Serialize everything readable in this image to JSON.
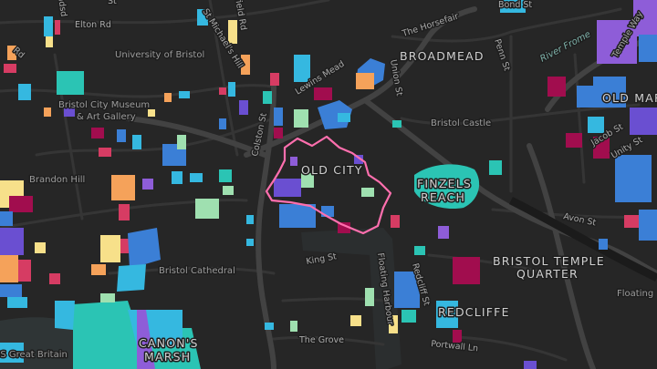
{
  "map": {
    "accent_colors": {
      "background": "#262626",
      "road": "#3a3a3a",
      "major_road": "#444444",
      "water": "#333a3b",
      "highlight_outline": "#ff6fae",
      "palette": [
        "#35b8e0",
        "#3b7fd6",
        "#6a4fd1",
        "#8e5dd8",
        "#a10d4e",
        "#d63c63",
        "#f5a25a",
        "#f7e08a",
        "#9fe0b0",
        "#2bc4b4"
      ]
    },
    "area_labels": {
      "broadmead": "BROADMEAD",
      "old_city": "OLD CITY",
      "finzels_reach_1": "FINZELS",
      "finzels_reach_2": "REACH",
      "redcliffe": "REDCLIFFE",
      "temple_quarter_1": "BRISTOL TEMPLE",
      "temple_quarter_2": "QUARTER",
      "old_market": "OLD MAR",
      "canons_marsh_1": "CANON'S",
      "canons_marsh_2": "MARSH"
    },
    "poi_labels": {
      "university": "University of Bristol",
      "museum_1": "Bristol City Museum",
      "museum_2": "& Art Gallery",
      "brandon_hill": "Brandon Hill",
      "castle": "Bristol Castle",
      "cathedral": "Bristol Cathedral",
      "ss_great_britain": "SS Great Britain",
      "floating": "Floating"
    },
    "street_labels": {
      "elton_rd": "Elton Rd",
      "the_horsefair": "The Horsefair",
      "bond_st": "Bond St",
      "lewins_mead": "Lewins Mead",
      "union_st": "Union St",
      "penn_st": "Penn St",
      "st_michaels_hill": "St Michael's Hill",
      "colston_st": "Colston St",
      "king_st": "King St",
      "avon_st": "Avon St",
      "jacob_st": "Jacob St",
      "unity_st": "Unity St",
      "the_grove": "The Grove",
      "portwall_ln": "Portwall Ln",
      "redcliff_st": "Redcliff St",
      "floating_harbour": "Floating Harbour",
      "river_frome": "River Frome",
      "temple_way": "Temple Way",
      "field_rd": "field Rd",
      "rd_left": "Rd",
      "sd_top": "adsd",
      "top_left_st": "St"
    }
  }
}
